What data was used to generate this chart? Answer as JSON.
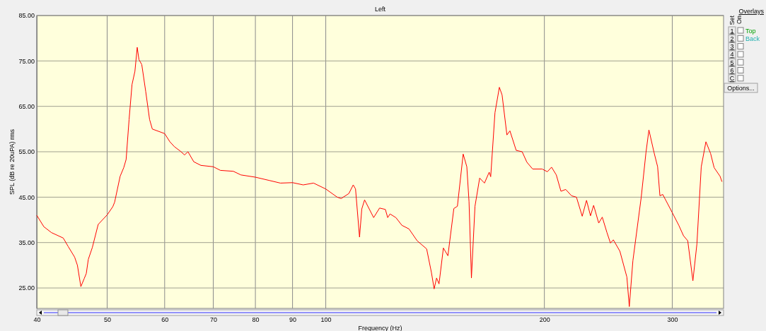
{
  "chart_data": {
    "type": "line",
    "title": "Left",
    "xlabel": "Frequency (Hz)",
    "ylabel": "SPL (dB re 20uPA) rms",
    "log": "x",
    "grid": true,
    "marker": "none",
    "line_style": "solid",
    "xlim": [
      40,
      353
    ],
    "xticks": [
      40,
      50,
      60,
      70,
      80,
      90,
      100,
      200,
      300
    ],
    "ylim": [
      20.5,
      85
    ],
    "yticks": [
      {
        "value": 25,
        "label": "25.00"
      },
      {
        "value": 35,
        "label": "35.00"
      },
      {
        "value": 45,
        "label": "45.00"
      },
      {
        "value": 55,
        "label": "55.00"
      },
      {
        "value": 65,
        "label": "65.00"
      },
      {
        "value": 75,
        "label": "75.00"
      },
      {
        "value": 85,
        "label": "85.00"
      }
    ],
    "annotations": [
      "Overlays",
      "Set",
      "On",
      "1",
      "2",
      "3",
      "4",
      "5",
      "6",
      "C",
      "Top",
      "Back",
      "Options..."
    ],
    "series": [
      {
        "color": "#ff0000",
        "x": [
          40,
          40.9,
          41.9,
          43.5,
          44.2,
          45.1,
          45.5,
          46.0,
          46.5,
          46.8,
          47.1,
          47.7,
          48.6,
          50,
          50.9,
          51.2,
          52.1,
          52.7,
          53.1,
          53.6,
          54.1,
          54.6,
          55.0,
          55.3,
          55.8,
          56.5,
          57.2,
          57.7,
          60,
          61.0,
          61.9,
          63.1,
          63.9,
          64.6,
          65.8,
          67.3,
          70,
          71.6,
          74.6,
          76.4,
          80,
          83.5,
          86.6,
          90,
          93.1,
          96.2,
          100,
          103.7,
          105.0,
          107.6,
          109.1,
          109.9,
          111.3,
          112.1,
          113.1,
          116.4,
          118.6,
          120.8,
          121.7,
          122.6,
          124.9,
          127.3,
          130.2,
          133.6,
          137.7,
          139.8,
          141.0,
          142.1,
          143.2,
          145.2,
          147.3,
          150.1,
          151.8,
          154.6,
          156.4,
          157.5,
          158.7,
          160.5,
          162.9,
          165.4,
          167.9,
          168.7,
          171.0,
          173.4,
          174.9,
          177.6,
          179.3,
          182.9,
          186.4,
          189.2,
          192.7,
          198.6,
          201.9,
          204.6,
          207.7,
          210.8,
          214.0,
          218.0,
          221.4,
          225.5,
          228.6,
          231.5,
          233.8,
          237.6,
          240.3,
          243.9,
          246.6,
          248.9,
          254.1,
          259.8,
          261.8,
          264.8,
          271.9,
          276.0,
          278.6,
          283.2,
          286.4,
          288.5,
          291.1,
          300,
          306.3,
          310.9,
          315.1,
          320.3,
          324.4,
          328.9,
          333.8,
          338.8,
          342.6,
          349.1,
          351.2
        ],
        "values": [
          41.0,
          38.5,
          37.2,
          36.0,
          34.1,
          31.8,
          30.0,
          25.3,
          27.1,
          28.2,
          31.3,
          33.9,
          39.0,
          41.1,
          42.9,
          43.9,
          49.6,
          51.5,
          53.3,
          62.1,
          69.8,
          72.7,
          78.0,
          75.3,
          74.2,
          68.3,
          62.1,
          60.0,
          59.0,
          57.2,
          56.1,
          55.1,
          54.3,
          55.0,
          52.8,
          52.0,
          51.7,
          50.9,
          50.7,
          49.9,
          49.4,
          48.7,
          48.1,
          48.2,
          47.7,
          48.1,
          46.8,
          45.0,
          44.7,
          45.8,
          47.7,
          46.8,
          36.2,
          42.4,
          44.4,
          40.5,
          42.6,
          42.3,
          40.5,
          41.3,
          40.5,
          38.8,
          38.0,
          35.4,
          33.6,
          28.4,
          24.8,
          27.2,
          25.9,
          33.8,
          32.1,
          42.5,
          43.0,
          54.5,
          51.7,
          44.0,
          27.2,
          43.0,
          49.2,
          48.1,
          50.5,
          49.5,
          63.6,
          69.2,
          67.5,
          58.7,
          59.6,
          55.3,
          55.0,
          52.7,
          51.2,
          51.2,
          50.6,
          51.6,
          49.9,
          46.3,
          46.7,
          45.3,
          45.0,
          40.8,
          44.3,
          40.9,
          43.2,
          39.3,
          40.6,
          37.2,
          34.9,
          35.6,
          33.1,
          27.4,
          20.9,
          31.0,
          45.0,
          54.8,
          59.8,
          54.8,
          51.7,
          45.3,
          45.6,
          41.6,
          38.8,
          36.5,
          35.4,
          26.6,
          34.7,
          51.7,
          57.2,
          54.6,
          51.5,
          49.6,
          48.4
        ]
      }
    ]
  }
}
